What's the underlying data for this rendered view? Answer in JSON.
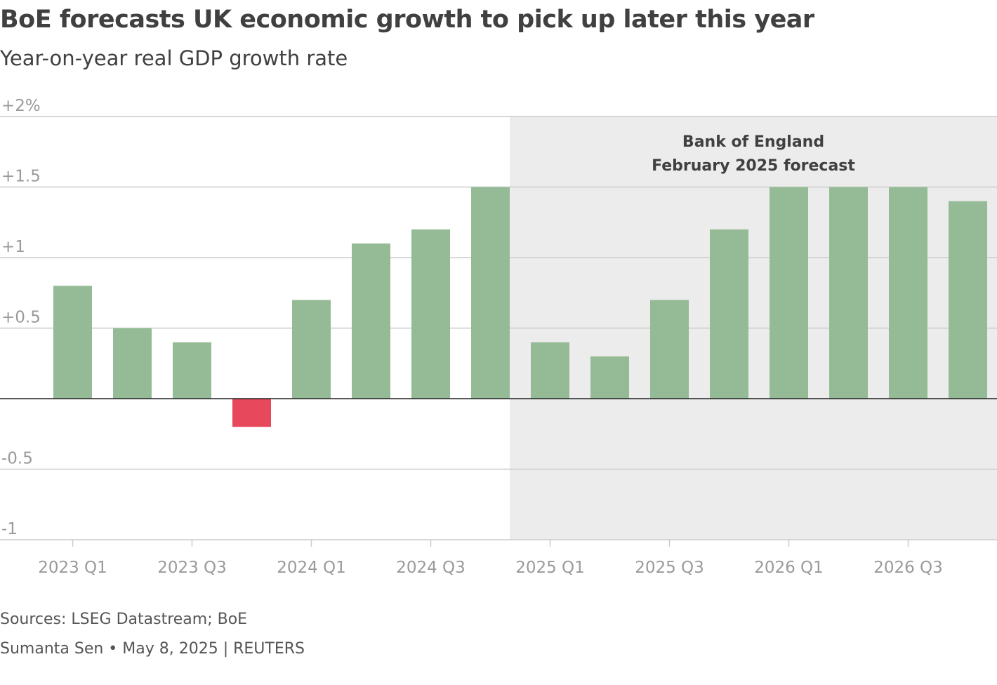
{
  "chart_data": {
    "type": "bar",
    "title": "BoE forecasts UK economic growth to pick up later this year",
    "subtitle": "Year-on-year real GDP growth rate",
    "categories": [
      "2023 Q1",
      "2023 Q2",
      "2023 Q3",
      "2023 Q4",
      "2024 Q1",
      "2024 Q2",
      "2024 Q3",
      "2024 Q4",
      "2025 Q1",
      "2025 Q2",
      "2025 Q3",
      "2025 Q4",
      "2026 Q1",
      "2026 Q2",
      "2026 Q3",
      "2026 Q4"
    ],
    "values": [
      0.8,
      0.5,
      0.4,
      -0.2,
      0.7,
      1.1,
      1.2,
      1.5,
      0.4,
      0.3,
      0.7,
      1.2,
      1.5,
      1.5,
      1.5,
      1.4
    ],
    "ylim": [
      -1,
      2
    ],
    "yticks": [
      {
        "value": 2,
        "label": "+2%"
      },
      {
        "value": 1.5,
        "label": "+1.5"
      },
      {
        "value": 1,
        "label": "+1"
      },
      {
        "value": 0.5,
        "label": "+0.5"
      },
      {
        "value": -0.5,
        "label": "-0.5"
      },
      {
        "value": -1,
        "label": "-1"
      }
    ],
    "xticks": [
      "2023 Q1",
      "2023 Q3",
      "2024 Q1",
      "2024 Q3",
      "2025 Q1",
      "2025 Q3",
      "2026 Q1",
      "2026 Q3"
    ],
    "forecast": {
      "start": "2025 Q1",
      "label_lines": [
        "Bank of England",
        "February 2025 forecast"
      ]
    },
    "grid": true,
    "xlabel": "",
    "ylabel": ""
  },
  "colors": {
    "positive": "#95bb96",
    "negative": "#e8485c",
    "forecast_band": "#ececec",
    "grid": "#cccccc",
    "zero_line": "#222222",
    "axis_text": "#9a9a9a"
  },
  "footer": {
    "sources": "Sources: LSEG Datastream; BoE",
    "credit": "Sumanta Sen • May 8, 2025 | REUTERS"
  }
}
